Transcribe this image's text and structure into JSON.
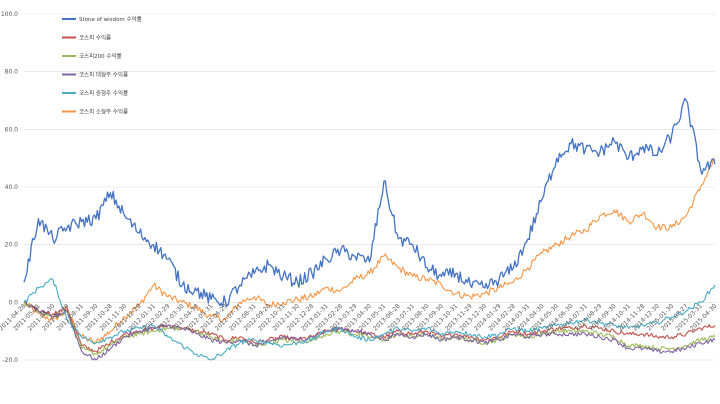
{
  "chart_data": {
    "type": "line",
    "title": "",
    "xlabel": "",
    "ylabel": "",
    "ylim": [
      -20,
      100
    ],
    "yticks": [
      "-20.0",
      "0.0",
      "20.0",
      "40.0",
      "60.0",
      "80.0",
      "100.0"
    ],
    "grid": true,
    "legend_position": "top-left",
    "x_tick_labels": [
      "2011-04-28",
      "2011-05-31",
      "2011-06-30",
      "2011-07-29",
      "2011-08-31",
      "2011-09-30",
      "2011-10-28",
      "2011-11-30",
      "2011-12-28",
      "2012-01-31",
      "2012-02-29",
      "2012-03-30",
      "2012-04-30",
      "2012-05-31",
      "2012-06-29",
      "2012-07-31",
      "2012-08-31",
      "2012-09-28",
      "2012-10-31",
      "2012-11-30",
      "2012-12-28",
      "2013-01-31",
      "2013-02-28",
      "2013-03-29",
      "2013-04-30",
      "2013-05-31",
      "2013-06-28",
      "2013-07-31",
      "2013-08-30",
      "2013-09-30",
      "2013-10-31",
      "2013-11-29",
      "2013-12-30",
      "2014-01-29",
      "2014-02-28",
      "2014-03-31",
      "2014-04-30",
      "2014-05-30",
      "2014-06-30",
      "2014-07-31",
      "2014-08-29",
      "2014-09-30",
      "2014-10-31",
      "2014-11-28",
      "2014-12-30",
      "2015-01-30",
      "2015-02-27",
      "2015-03-31",
      "2015-04-30"
    ],
    "series": [
      {
        "name": "Stone of wisdom 수익률",
        "color": "#4472c4",
        "values": [
          7,
          29,
          22,
          26,
          28,
          29,
          38,
          30,
          24,
          20,
          15,
          6,
          4,
          1,
          0,
          6,
          10,
          13,
          9,
          7,
          10,
          15,
          18,
          16,
          14,
          42,
          22,
          20,
          12,
          9,
          10,
          6,
          5,
          8,
          12,
          22,
          36,
          50,
          55,
          53,
          52,
          56,
          50,
          54,
          51,
          58,
          70,
          46,
          48
        ]
      },
      {
        "name": "코스피 수익률",
        "color": "#c0504d",
        "values": [
          0,
          -3,
          -4,
          -2,
          -15,
          -17,
          -14,
          -11,
          -10,
          -9,
          -8,
          -9,
          -10,
          -11,
          -13,
          -12,
          -14,
          -13,
          -12,
          -13,
          -12,
          -10,
          -9,
          -10,
          -11,
          -12,
          -10,
          -11,
          -10,
          -12,
          -11,
          -12,
          -13,
          -12,
          -10,
          -11,
          -10,
          -9,
          -9,
          -8,
          -9,
          -10,
          -11,
          -11,
          -12,
          -12,
          -11,
          -9,
          -8
        ]
      },
      {
        "name": "코스피200 수익률",
        "color": "#9bbb59",
        "values": [
          0,
          -3,
          -5,
          -3,
          -16,
          -18,
          -15,
          -12,
          -11,
          -10,
          -9,
          -9,
          -10,
          -12,
          -14,
          -13,
          -15,
          -14,
          -13,
          -14,
          -13,
          -11,
          -10,
          -11,
          -12,
          -13,
          -11,
          -12,
          -11,
          -13,
          -12,
          -13,
          -14,
          -13,
          -11,
          -12,
          -11,
          -10,
          -10,
          -10,
          -11,
          -12,
          -15,
          -15,
          -16,
          -16,
          -15,
          -13,
          -12
        ]
      },
      {
        "name": "코스피 대형주 수익률",
        "color": "#8064a2",
        "values": [
          0,
          -3,
          -5,
          -3,
          -17,
          -20,
          -16,
          -12,
          -10,
          -9,
          -8,
          -9,
          -11,
          -13,
          -14,
          -13,
          -15,
          -14,
          -12,
          -13,
          -12,
          -10,
          -9,
          -10,
          -11,
          -13,
          -11,
          -12,
          -11,
          -13,
          -12,
          -13,
          -14,
          -13,
          -11,
          -12,
          -11,
          -11,
          -11,
          -11,
          -12,
          -13,
          -16,
          -16,
          -17,
          -17,
          -16,
          -14,
          -13
        ]
      },
      {
        "name": "코스피 중형주 수익률",
        "color": "#4bacc6",
        "values": [
          0,
          5,
          8,
          -6,
          -12,
          -14,
          -12,
          -10,
          -9,
          -8,
          -12,
          -15,
          -18,
          -20,
          -17,
          -14,
          -13,
          -14,
          -15,
          -14,
          -13,
          -10,
          -9,
          -12,
          -13,
          -11,
          -9,
          -10,
          -9,
          -11,
          -10,
          -11,
          -12,
          -11,
          -9,
          -10,
          -9,
          -8,
          -7,
          -6,
          -7,
          -8,
          -9,
          -8,
          -7,
          -5,
          -3,
          0,
          6
        ]
      },
      {
        "name": "코스피 소형주 수익률",
        "color": "#f79646",
        "values": [
          0,
          -4,
          -6,
          -3,
          -12,
          -14,
          -10,
          -5,
          -1,
          6,
          2,
          0,
          -2,
          -5,
          -6,
          0,
          2,
          -1,
          0,
          1,
          2,
          5,
          4,
          8,
          10,
          16,
          12,
          9,
          8,
          6,
          3,
          2,
          3,
          5,
          7,
          12,
          17,
          20,
          23,
          25,
          30,
          32,
          28,
          31,
          26,
          26,
          30,
          40,
          50
        ]
      }
    ]
  }
}
